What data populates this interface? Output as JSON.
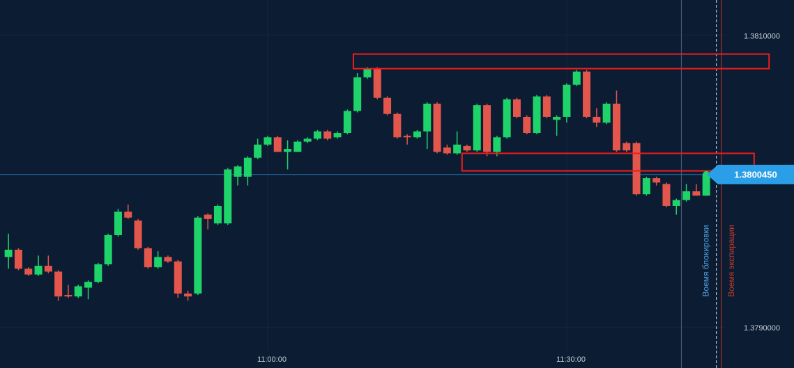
{
  "chart_data": {
    "type": "candlestick",
    "x": [
      -26,
      -25,
      -24,
      -23,
      -22,
      -21,
      -20,
      -19,
      -18,
      -17,
      -16,
      -15,
      -14,
      -13,
      -12,
      -11,
      -10,
      -9,
      -8,
      -7,
      -6,
      -5,
      -4,
      -3,
      -2,
      -1,
      0,
      1,
      2,
      3,
      4,
      5,
      6,
      7,
      8,
      9,
      10,
      11,
      12,
      13,
      14,
      15,
      16,
      17,
      18,
      19,
      20,
      21,
      22,
      23,
      24,
      25,
      26,
      27,
      28,
      29,
      30,
      31,
      32,
      33,
      34,
      35,
      36,
      37,
      38,
      39,
      40,
      41,
      42,
      43,
      44
    ],
    "open": [
      1.37948,
      1.37953,
      1.3794,
      1.37936,
      1.37942,
      1.37938,
      1.37922,
      1.37921,
      1.37927,
      1.37931,
      1.37943,
      1.37963,
      1.37979,
      1.37973,
      1.37954,
      1.37941,
      1.37948,
      1.37945,
      1.37923,
      1.37923,
      1.37977,
      1.37971,
      1.37971,
      1.38003,
      1.38003,
      1.38016,
      1.38025,
      1.3803,
      1.3802,
      1.3802,
      1.38027,
      1.38029,
      1.38034,
      1.3803,
      1.38033,
      1.38048,
      1.38071,
      1.38077,
      1.38057,
      1.38046,
      1.38031,
      1.3803,
      1.38034,
      1.38053,
      1.38023,
      1.38019,
      1.38024,
      1.38021,
      1.38052,
      1.3802,
      1.3803,
      1.38056,
      1.38044,
      1.38033,
      1.38058,
      1.38042,
      1.38044,
      1.38066,
      1.38075,
      1.38044,
      1.3804,
      1.38053,
      1.38026,
      1.38026,
      1.37991,
      1.38002,
      1.37998,
      1.37983,
      1.37987,
      1.37993,
      1.3799
    ],
    "high": [
      1.37964,
      1.37954,
      1.37941,
      1.37949,
      1.37949,
      1.37939,
      1.37929,
      1.37929,
      1.37932,
      1.37944,
      1.37964,
      1.37981,
      1.37984,
      1.37974,
      1.37955,
      1.37952,
      1.37949,
      1.37946,
      1.37925,
      1.37976,
      1.37978,
      1.37984,
      1.38009,
      1.38011,
      1.38017,
      1.38029,
      1.38031,
      1.38031,
      1.38028,
      1.38028,
      1.3803,
      1.38035,
      1.38035,
      1.38034,
      1.38049,
      1.38074,
      1.38078,
      1.38078,
      1.38058,
      1.38047,
      1.38032,
      1.38035,
      1.38054,
      1.38054,
      1.38025,
      1.38034,
      1.38025,
      1.38053,
      1.38053,
      1.38031,
      1.38057,
      1.38057,
      1.38045,
      1.38059,
      1.38059,
      1.38045,
      1.38067,
      1.38076,
      1.38076,
      1.3805,
      1.38054,
      1.38062,
      1.38027,
      1.38027,
      1.38003,
      1.38003,
      1.37999,
      1.37988,
      1.37998,
      1.37998,
      1.38006
    ],
    "low": [
      1.3794,
      1.37939,
      1.37935,
      1.37935,
      1.37937,
      1.37918,
      1.3792,
      1.3792,
      1.37919,
      1.3793,
      1.37942,
      1.37962,
      1.37974,
      1.37953,
      1.3794,
      1.3794,
      1.37944,
      1.3792,
      1.37918,
      1.37922,
      1.37967,
      1.3797,
      1.3797,
      1.37997,
      1.37997,
      1.38015,
      1.38024,
      1.3802,
      1.38008,
      1.3802,
      1.38026,
      1.38028,
      1.38028,
      1.38029,
      1.38032,
      1.38047,
      1.3807,
      1.38056,
      1.38045,
      1.38029,
      1.38025,
      1.38029,
      1.38022,
      1.38019,
      1.38018,
      1.38018,
      1.3802,
      1.3802,
      1.38017,
      1.38017,
      1.38029,
      1.38043,
      1.38032,
      1.38032,
      1.38043,
      1.38031,
      1.3804,
      1.38065,
      1.38043,
      1.38037,
      1.38039,
      1.3802,
      1.3802,
      1.3799,
      1.3799,
      1.37997,
      1.37982,
      1.37977,
      1.37986,
      1.3799,
      1.3799
    ],
    "close": [
      1.37953,
      1.3794,
      1.37936,
      1.37942,
      1.37938,
      1.37921,
      1.37921,
      1.37928,
      1.37931,
      1.37943,
      1.37963,
      1.37979,
      1.37975,
      1.37954,
      1.37941,
      1.37948,
      1.37945,
      1.37923,
      1.37921,
      1.37975,
      1.37974,
      1.37983,
      1.38008,
      1.3801,
      1.38016,
      1.38025,
      1.3803,
      1.3802,
      1.38022,
      1.38027,
      1.38029,
      1.38034,
      1.38029,
      1.38033,
      1.38048,
      1.38071,
      1.38077,
      1.38057,
      1.38046,
      1.3803,
      1.3803,
      1.38034,
      1.38053,
      1.3802,
      1.38019,
      1.38025,
      1.38021,
      1.38052,
      1.3802,
      1.3803,
      1.38056,
      1.38044,
      1.38033,
      1.38058,
      1.38044,
      1.38044,
      1.38066,
      1.38075,
      1.38044,
      1.3804,
      1.38053,
      1.38021,
      1.38021,
      1.37991,
      1.38002,
      1.37999,
      1.37983,
      1.37987,
      1.37993,
      1.3799,
      1.380045
    ],
    "up_color": "#1fd36b",
    "down_color": "#e2564c",
    "xlim": [
      -26.85,
      52.8
    ],
    "ylim": [
      1.37872,
      1.38124
    ],
    "xticks": [
      {
        "value": 0,
        "label": "11:00:00"
      },
      {
        "value": 30,
        "label": "11:30:00"
      }
    ],
    "yticks": [
      {
        "value": 1.381,
        "label": "1.3810000"
      },
      {
        "value": 1.379,
        "label": "1.3790000"
      }
    ],
    "grid": true,
    "current_price": {
      "value": 1.380045,
      "label": "1.3800450",
      "color": "#2a9fe8"
    },
    "lock_time": {
      "x": 41.5,
      "label": "Воемя блокировки",
      "color": "#4f9fe0"
    },
    "expiration_time": {
      "x": 45.5,
      "label": "Воемя экспирации",
      "color": "#c0392b"
    },
    "zones": [
      {
        "xlim": [
          8.6,
          50.3
        ],
        "ylim": [
          1.38077,
          1.38087
        ],
        "color": "#ee1c1c"
      },
      {
        "xlim": [
          19.5,
          48.8
        ],
        "ylim": [
          1.38007,
          1.38019
        ],
        "color": "#ee1c1c"
      }
    ]
  }
}
